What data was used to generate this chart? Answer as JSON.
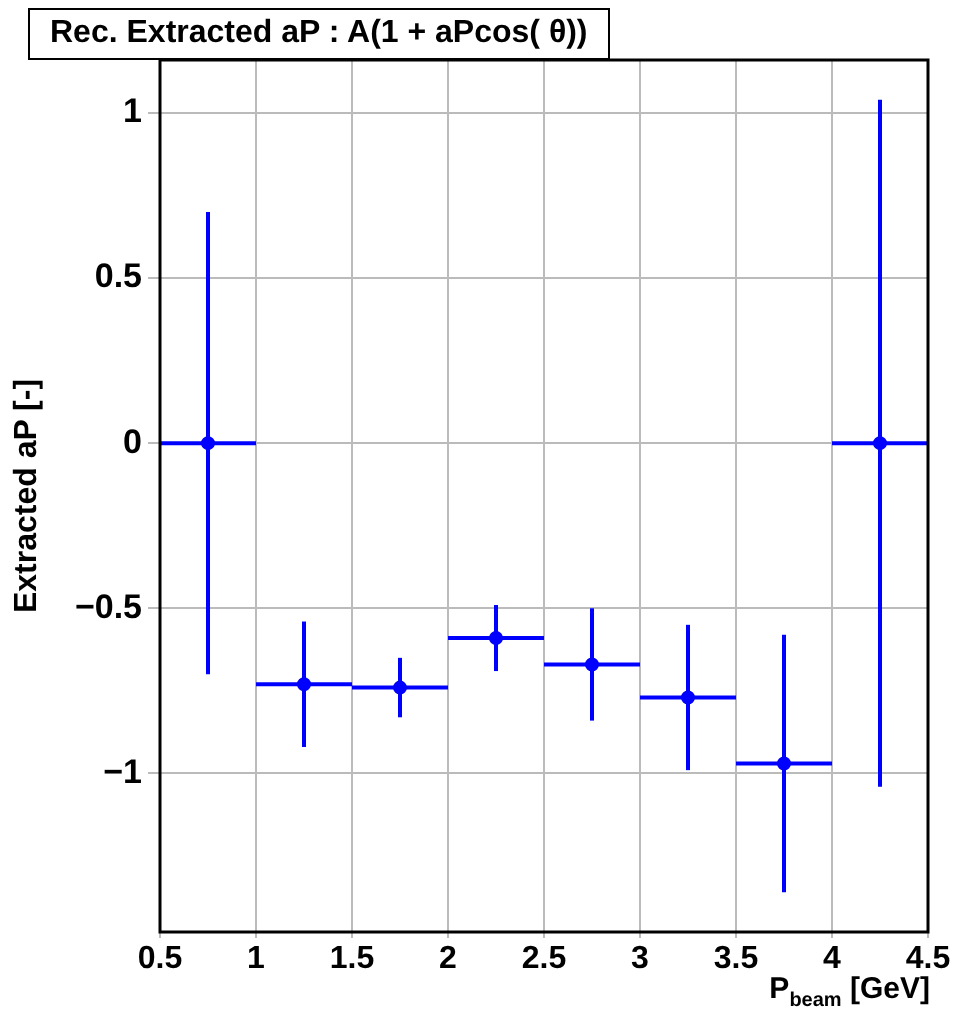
{
  "chart_data": {
    "type": "scatter",
    "title": "Rec. Extracted aP : A(1 + aPcos( θ))",
    "xlabel": "P$_{beam}$ [GeV]",
    "ylabel": "Extracted aP [-]",
    "x": [
      0.75,
      1.25,
      1.75,
      2.25,
      2.75,
      3.25,
      3.75,
      4.25
    ],
    "series": [
      {
        "color": "#0000ff",
        "values": [
          0,
          -0.73,
          -0.74,
          -0.59,
          -0.67,
          -0.77,
          -0.97,
          0
        ],
        "errors": [
          0.7,
          0.19,
          0.09,
          0.1,
          0.17,
          0.22,
          0.39,
          1.04
        ],
        "xerrors": [
          0.25,
          0.25,
          0.25,
          0.25,
          0.25,
          0.25,
          0.25,
          0.25
        ]
      }
    ],
    "xlim": [
      0.5,
      4.5
    ],
    "xticks": [
      0.5,
      1,
      1.5,
      2,
      2.5,
      3,
      3.5,
      4,
      4.5
    ],
    "ylim": [
      -1.48,
      1.16
    ],
    "yticks": [
      -1,
      -0.5,
      0,
      0.5,
      1
    ],
    "grid": true,
    "marker": "circle",
    "legend": false
  }
}
